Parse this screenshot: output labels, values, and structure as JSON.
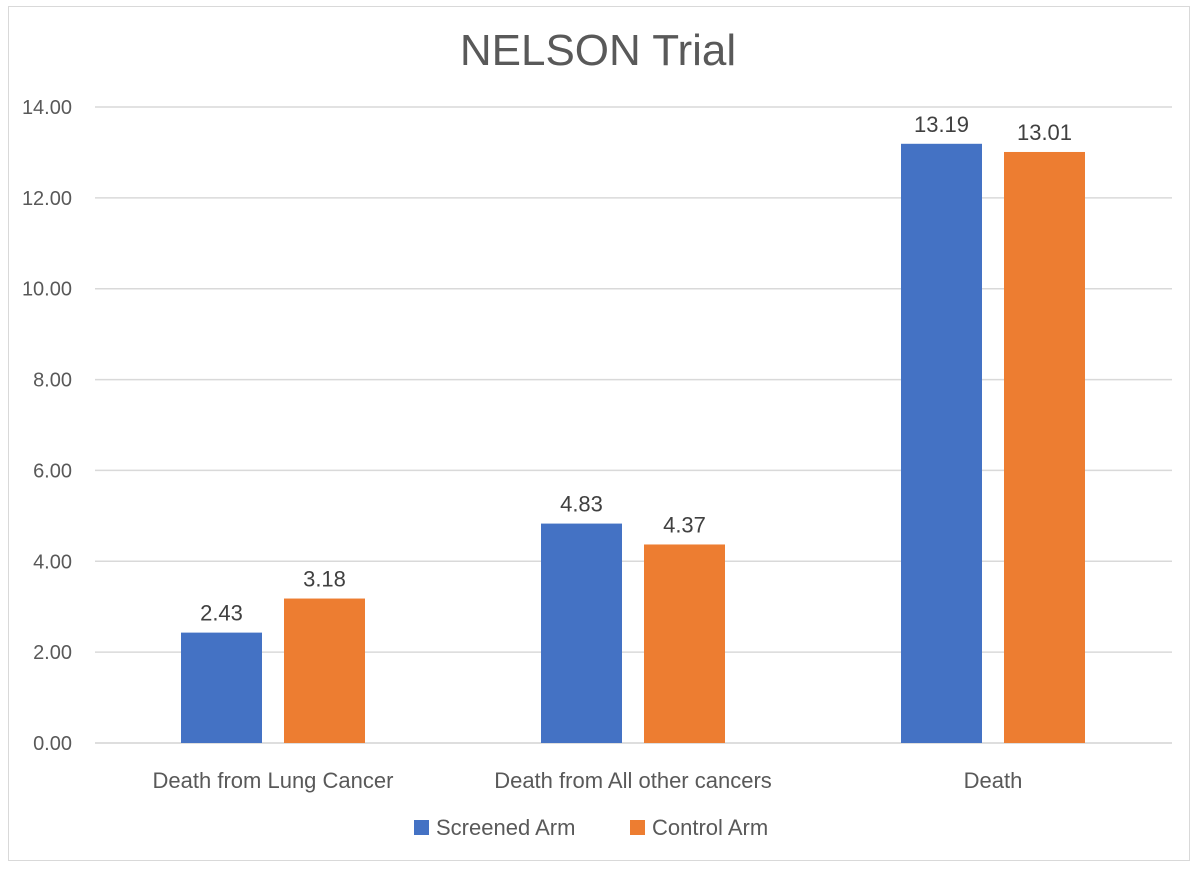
{
  "chart_data": {
    "type": "bar",
    "title": "NELSON Trial",
    "categories": [
      "Death from Lung Cancer",
      "Death from All other cancers",
      "Death"
    ],
    "series": [
      {
        "name": "Screened Arm",
        "color": "#4472C4",
        "values": [
          2.43,
          4.83,
          13.19
        ],
        "labels": [
          "2.43",
          "4.83",
          "13.19"
        ]
      },
      {
        "name": "Control Arm",
        "color": "#ED7D31",
        "values": [
          3.18,
          4.37,
          13.01
        ],
        "labels": [
          "3.18",
          "4.37",
          "13.01"
        ]
      }
    ],
    "ylim": [
      0,
      14
    ],
    "yticks": [
      "0.00",
      "2.00",
      "4.00",
      "6.00",
      "8.00",
      "10.00",
      "12.00",
      "14.00"
    ],
    "ytick_values": [
      0,
      2,
      4,
      6,
      8,
      10,
      12,
      14
    ],
    "grid": true,
    "legend": "bottom",
    "xlabel": "",
    "ylabel": ""
  }
}
